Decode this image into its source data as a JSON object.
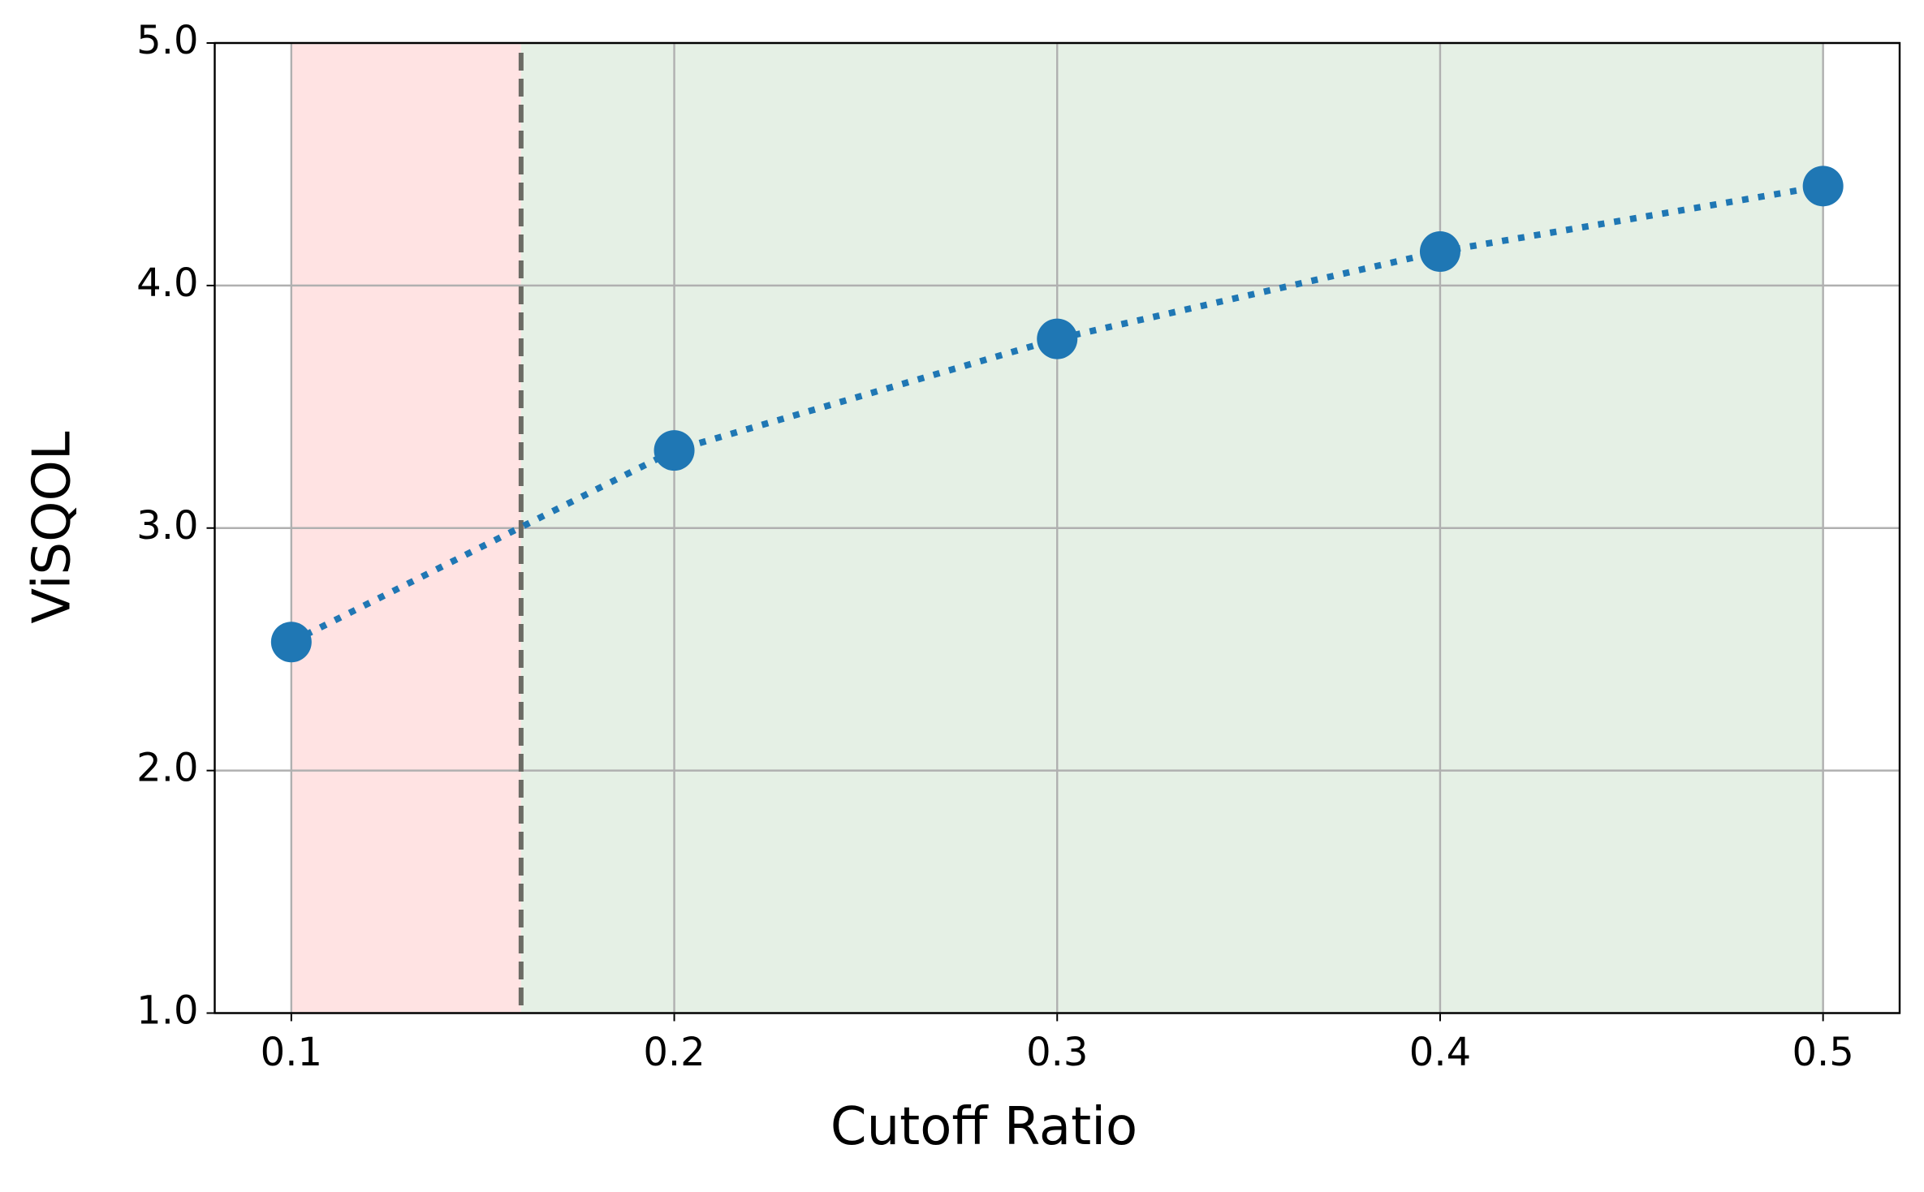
{
  "chart_data": {
    "type": "line",
    "x_label": "Cutoff Ratio",
    "y_label": "ViSQOL",
    "x": [
      0.1,
      0.2,
      0.3,
      0.4,
      0.5
    ],
    "series": [
      {
        "color": "#1f77b4",
        "values": [
          2.53,
          3.32,
          3.78,
          4.14,
          4.41
        ]
      }
    ],
    "xlim": [
      0.08,
      0.52
    ],
    "ylim": [
      1,
      5
    ],
    "xticks": [
      0.1,
      0.2,
      0.3,
      0.4,
      0.5
    ],
    "yticks": [
      {
        "value": 1,
        "label": "1.0"
      },
      {
        "value": 2,
        "label": "2.0"
      },
      {
        "value": 3,
        "label": "3.0"
      },
      {
        "value": 4,
        "label": "4.0"
      },
      {
        "value": 5,
        "label": "5.0"
      }
    ],
    "grid": true,
    "threshold": 0.16,
    "regions": [
      {
        "x": [
          0.1,
          0.16
        ],
        "color": "#ffe3e3"
      },
      {
        "x": [
          0.16,
          0.5
        ],
        "color": "#e5f0e5"
      }
    ]
  }
}
